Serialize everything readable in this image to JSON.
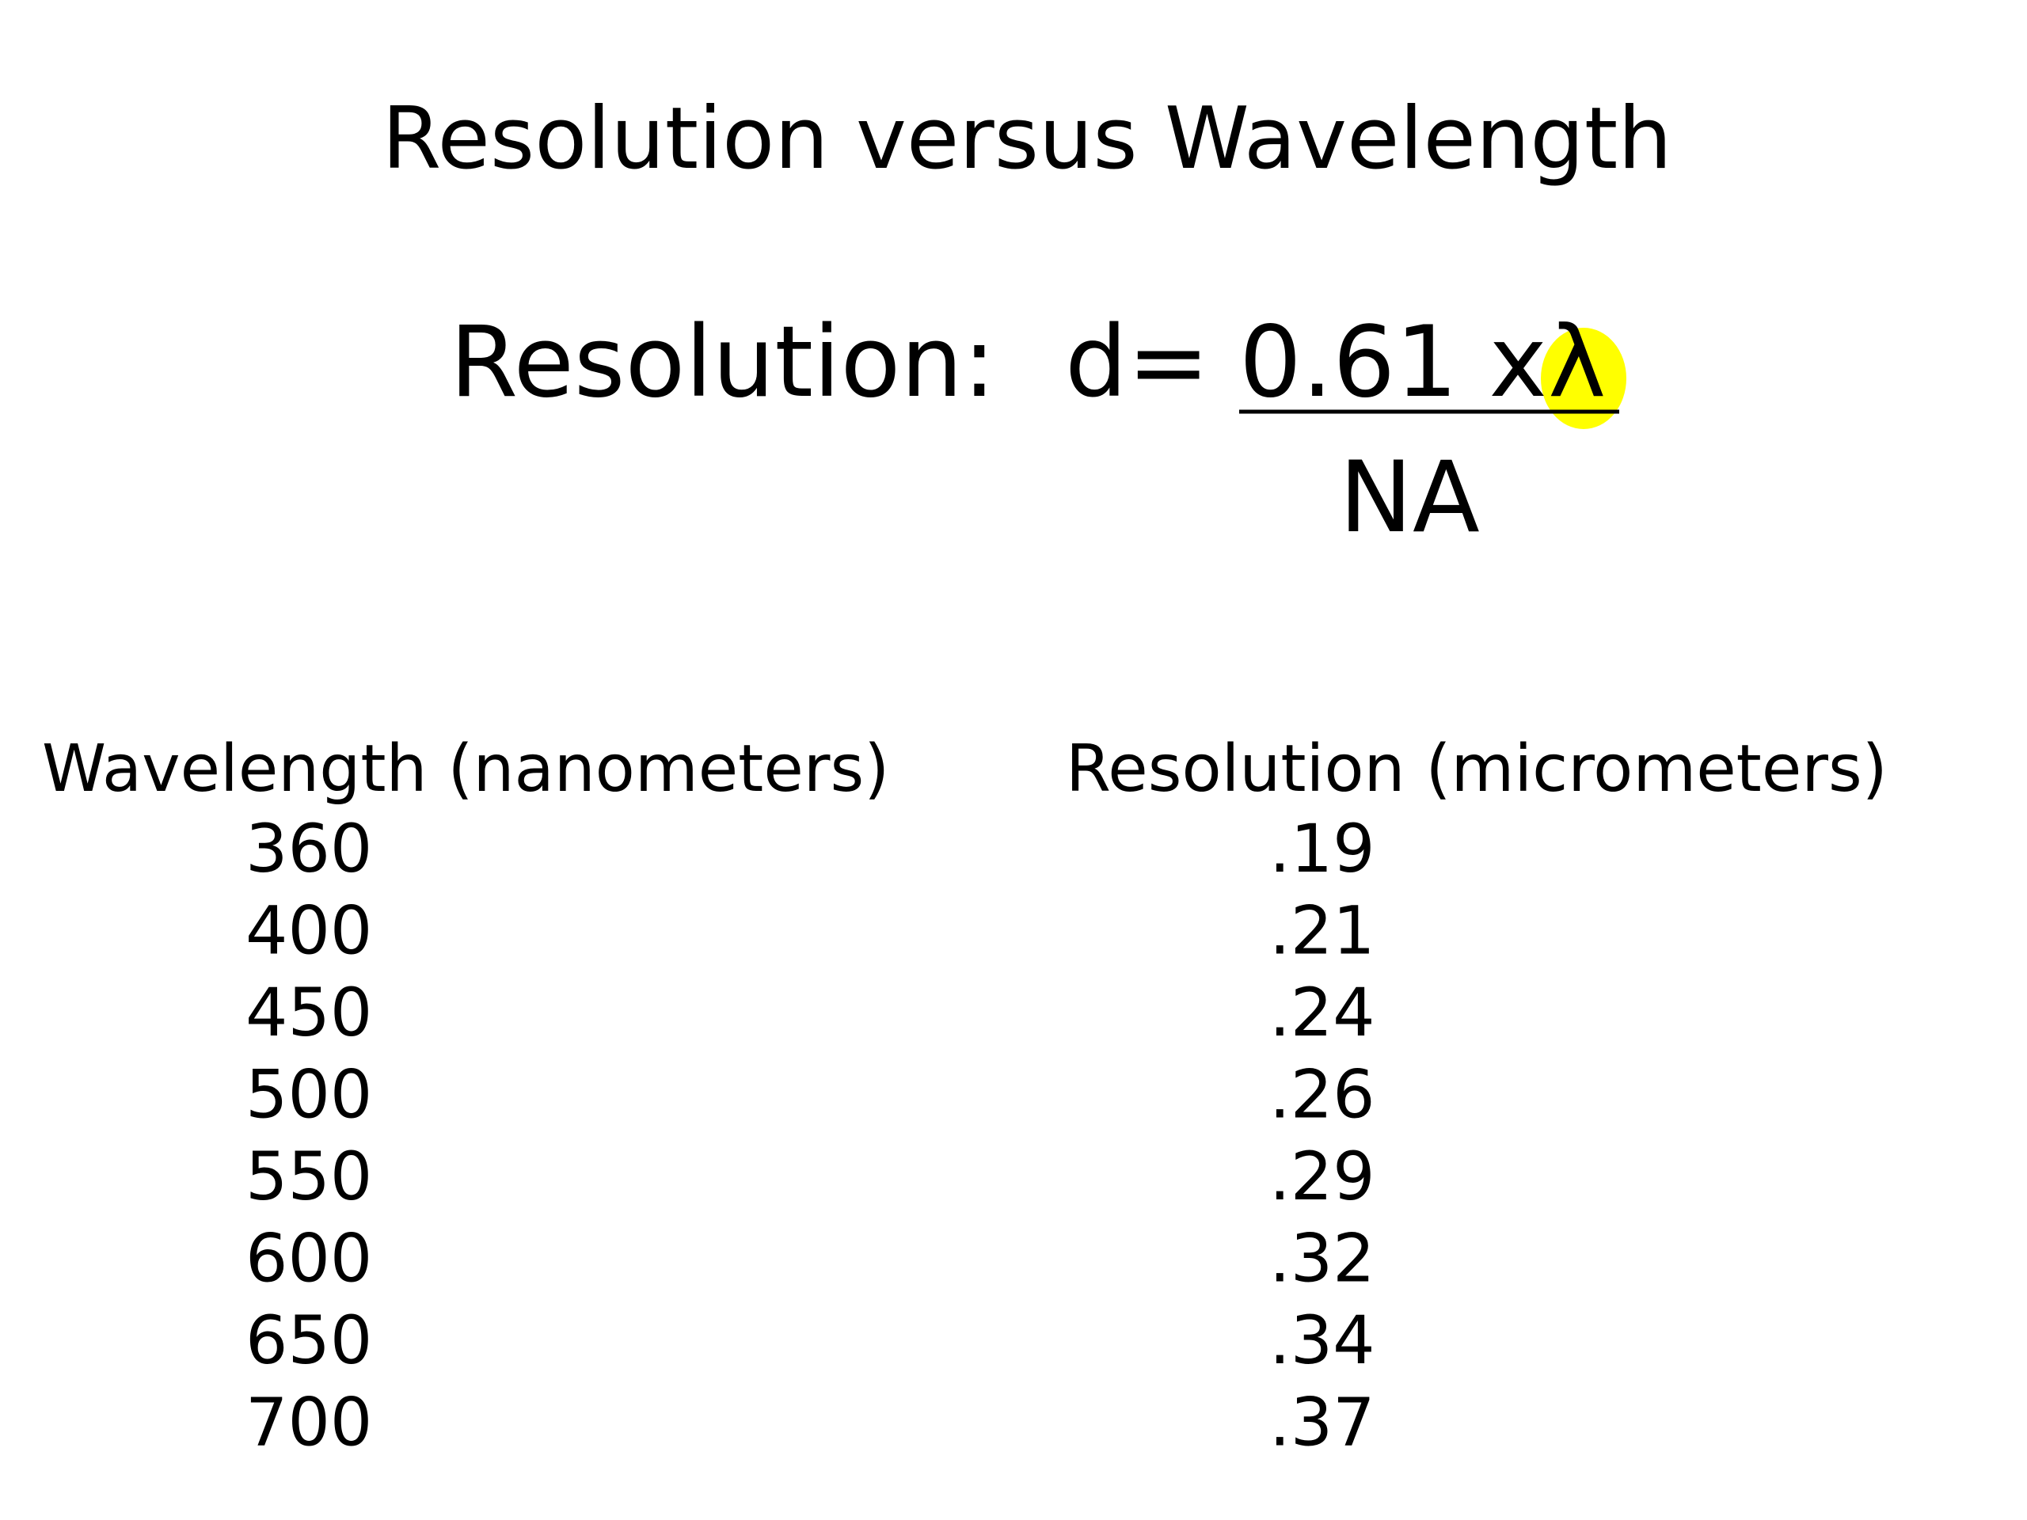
{
  "slide": {
    "title": "Resolution versus Wavelength",
    "formula": {
      "label": "Resolution:",
      "lhs": "d=",
      "numerator": "0.61 x",
      "symbol": "λ",
      "denominator": "NA"
    },
    "table": {
      "headers": [
        "Wavelength (nanometers)",
        "Resolution (micrometers)"
      ],
      "rows": [
        [
          "360",
          ".19"
        ],
        [
          "400",
          ".21"
        ],
        [
          "450",
          ".24"
        ],
        [
          "500",
          ".26"
        ],
        [
          "550",
          ".29"
        ],
        [
          "600",
          ".32"
        ],
        [
          "650",
          ".34"
        ],
        [
          "700",
          ".37"
        ]
      ]
    }
  }
}
